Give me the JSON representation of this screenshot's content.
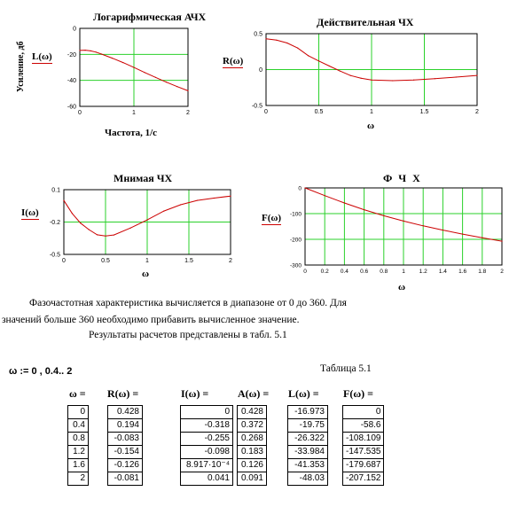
{
  "chart_data": [
    {
      "type": "line",
      "title": "Логарифмическая АЧХ",
      "xlabel": "Частота, 1/с",
      "ylabel": "Усиление, дб",
      "func_label": "L(ω)",
      "xlim": [
        0,
        2
      ],
      "ylim": [
        -60,
        0
      ],
      "xticks": [
        0,
        1,
        2
      ],
      "yticks": [
        0,
        -20,
        -40,
        -60
      ],
      "x": [
        0,
        0.1,
        0.2,
        0.3,
        0.4,
        0.6,
        0.8,
        1.0,
        1.2,
        1.4,
        1.6,
        1.8,
        2.0
      ],
      "y": [
        -16.973,
        -16.8,
        -17.3,
        -18.3,
        -19.75,
        -22.9,
        -26.322,
        -30.1,
        -33.984,
        -37.7,
        -41.353,
        -44.8,
        -48.03
      ]
    },
    {
      "type": "line",
      "title": "Действительная ЧХ",
      "xlabel": "ω",
      "func_label": "R(ω)",
      "xlim": [
        0,
        2
      ],
      "ylim": [
        -0.5,
        0.5
      ],
      "xticks": [
        0,
        0.5,
        1,
        1.5,
        2
      ],
      "yticks": [
        0.5,
        0,
        -0.5
      ],
      "x": [
        0,
        0.1,
        0.2,
        0.3,
        0.4,
        0.5,
        0.6,
        0.7,
        0.8,
        0.9,
        1.0,
        1.2,
        1.4,
        1.6,
        1.8,
        2.0
      ],
      "y": [
        0.428,
        0.41,
        0.37,
        0.3,
        0.194,
        0.12,
        0.05,
        -0.02,
        -0.083,
        -0.12,
        -0.145,
        -0.154,
        -0.145,
        -0.126,
        -0.105,
        -0.081
      ]
    },
    {
      "type": "line",
      "title": "Мнимая ЧХ",
      "xlabel": "ω",
      "func_label": "I(ω)",
      "xlim": [
        0,
        2
      ],
      "ylim": [
        -0.5,
        0.1
      ],
      "xticks": [
        0,
        0.5,
        1,
        1.5,
        2
      ],
      "yticks": [
        0.1,
        -0.2,
        -0.5
      ],
      "x": [
        0,
        0.1,
        0.2,
        0.3,
        0.4,
        0.5,
        0.6,
        0.8,
        1.0,
        1.2,
        1.4,
        1.6,
        1.8,
        2.0
      ],
      "y": [
        0,
        -0.12,
        -0.21,
        -0.27,
        -0.318,
        -0.33,
        -0.32,
        -0.255,
        -0.18,
        -0.098,
        -0.04,
        0.0009,
        0.022,
        0.041
      ]
    },
    {
      "type": "line",
      "title": "Ф Ч Х",
      "xlabel": "ω",
      "func_label": "F(ω)",
      "xlim": [
        0,
        2
      ],
      "ylim": [
        -300,
        0
      ],
      "xticks": [
        0,
        0.2,
        0.4,
        0.6,
        0.8,
        1,
        1.2,
        1.4,
        1.6,
        1.8,
        2
      ],
      "yticks": [
        0,
        -100,
        -200,
        -300
      ],
      "x": [
        0,
        0.2,
        0.4,
        0.6,
        0.8,
        1.0,
        1.2,
        1.4,
        1.6,
        1.8,
        2.0
      ],
      "y": [
        0,
        -30,
        -58.6,
        -85,
        -108.109,
        -129,
        -147.535,
        -164,
        -179.687,
        -194,
        -207.152
      ]
    }
  ],
  "text": {
    "para1": "Фазочастотная характеристика вычисляется в диапазоне от 0 до 360. Для",
    "para2": "значений больше 360 необходимо прибавить вычисленное значение.",
    "para3": "Результаты расчетов представлены в табл. 5.1",
    "range_def": "ω := 0 , 0.4.. 2",
    "table_caption": "Таблица 5.1"
  },
  "table": {
    "headers": [
      "ω =",
      "R(ω) =",
      "I(ω) =",
      "A(ω) =",
      "L(ω) =",
      "F(ω) ="
    ],
    "omega": [
      "0",
      "0.4",
      "0.8",
      "1.2",
      "1.6",
      "2"
    ],
    "R": [
      "0.428",
      "0.194",
      "-0.083",
      "-0.154",
      "-0.126",
      "-0.081"
    ],
    "I": [
      "0",
      "-0.318",
      "-0.255",
      "-0.098",
      "8.917·10⁻⁴",
      "0.041"
    ],
    "A": [
      "0.428",
      "0.372",
      "0.268",
      "0.183",
      "0.126",
      "0.091"
    ],
    "L": [
      "-16.973",
      "-19.75",
      "-26.322",
      "-33.984",
      "-41.353",
      "-48.03"
    ],
    "F": [
      "0",
      "-58.6",
      "-108.109",
      "-147.535",
      "-179.687",
      "-207.152"
    ]
  }
}
